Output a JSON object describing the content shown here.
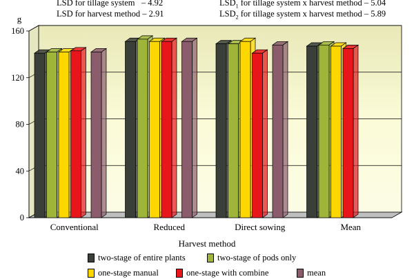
{
  "annotations": {
    "lsd_tillage": "LSD for tillage system   – 4.92",
    "lsd_harvest": "LSD for harvest method – 2.91",
    "lsd1_prefix": "LSD",
    "lsd1_sub": "1",
    "lsd1_rest": " for tillage system x harvest method – 5.04",
    "lsd2_prefix": "LSD",
    "lsd2_sub": "2",
    "lsd2_rest": " for tillage system x harvest method – 5.89"
  },
  "chart_data": {
    "type": "bar",
    "ylabel": "g",
    "xlabel": "Harvest method",
    "ylim": [
      0,
      160
    ],
    "yticks": [
      "0",
      "40",
      "80",
      "120",
      "160"
    ],
    "categories": [
      "Conventional",
      "Reduced",
      "Direct sowing",
      "Mean"
    ],
    "series": [
      {
        "name": "two-stage of entire plants",
        "color": "#3a3f3a",
        "values": [
          141,
          151,
          149,
          147
        ]
      },
      {
        "name": "two-stage of pods only",
        "color": "#9fb53a",
        "values": [
          142,
          153,
          149,
          148
        ]
      },
      {
        "name": "one-stage manual",
        "color": "#ffd700",
        "values": [
          142,
          151,
          151,
          147
        ]
      },
      {
        "name": "one-stage with combine",
        "color": "#e8161b",
        "values": [
          143,
          151,
          141,
          145
        ]
      },
      {
        "name": "mean",
        "color": "#8a5c6c",
        "values": [
          142,
          151,
          148,
          null
        ]
      }
    ],
    "grid": true,
    "legend_position": "bottom",
    "plot_background": "#fbfbd8"
  }
}
